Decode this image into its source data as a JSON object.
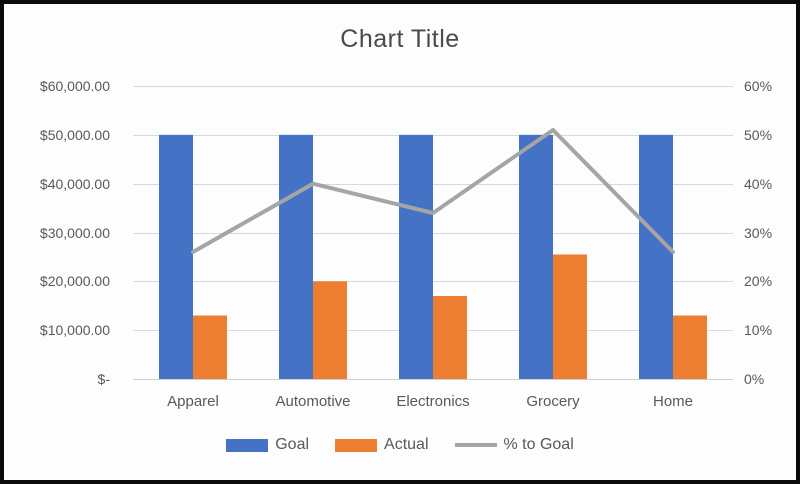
{
  "title": "Chart Title",
  "chart_data": {
    "type": "combo",
    "categories": [
      "Apparel",
      "Automotive",
      "Electronics",
      "Grocery",
      "Home"
    ],
    "series": [
      {
        "name": "Goal",
        "type": "bar",
        "axis": "left",
        "color": "#4472C4",
        "values": [
          50000,
          50000,
          50000,
          50000,
          50000
        ]
      },
      {
        "name": "Actual",
        "type": "bar",
        "axis": "left",
        "color": "#ED7D31",
        "values": [
          13000,
          20000,
          17000,
          25500,
          13000
        ]
      },
      {
        "name": "% to Goal",
        "type": "line",
        "axis": "right",
        "color": "#A5A5A5",
        "values": [
          26,
          40,
          34,
          51,
          26
        ]
      }
    ],
    "left_axis": {
      "ticks": [
        "$60,000.00",
        "$50,000.00",
        "$40,000.00",
        "$30,000.00",
        "$20,000.00",
        "$10,000.00",
        "$-"
      ],
      "min": 0,
      "max": 60000
    },
    "right_axis": {
      "ticks": [
        "60%",
        "50%",
        "40%",
        "30%",
        "20%",
        "10%",
        "0%"
      ],
      "min": 0,
      "max": 60
    },
    "grid": "horizontal",
    "legend_position": "bottom",
    "gridline_color": "#D9D9D9"
  }
}
